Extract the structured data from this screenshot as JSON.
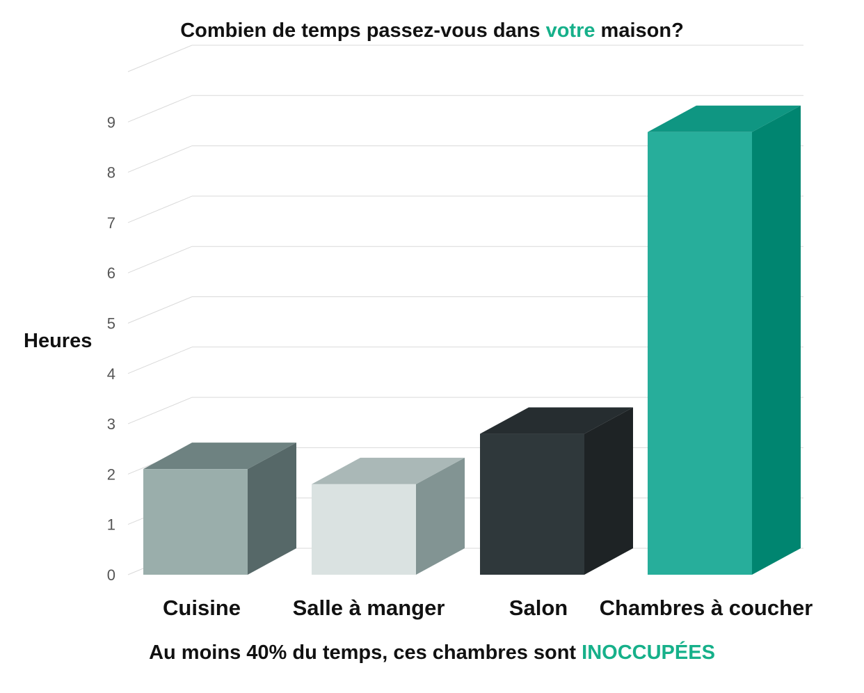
{
  "title": {
    "before": "Combien de temps passez-vous dans ",
    "highlight": "votre",
    "after": " maison?"
  },
  "footer": {
    "before": "Au moins 40% du temps, ces chambres sont ",
    "highlight": "INOCCUPÉES"
  },
  "colors": {
    "accent": "#16b08a",
    "grid": "#d9d9d9"
  },
  "chart_data": {
    "type": "bar",
    "title": "Combien de temps passez-vous dans votre maison?",
    "subtitle": "Au moins 40% du temps, ces chambres sont INOCCUPÉES",
    "xlabel": "",
    "ylabel": "Heures",
    "ylim": [
      0,
      9
    ],
    "yticks": [
      "0",
      "1",
      "2",
      "3",
      "4",
      "5",
      "6",
      "7",
      "8",
      "9"
    ],
    "grid": true,
    "style": "3d",
    "categories": [
      "Cuisine",
      "Salle à manger",
      "Salon",
      "Chambres à coucher"
    ],
    "values": [
      2.1,
      1.8,
      2.8,
      8.8
    ],
    "bar_colors": [
      {
        "front": "#9aaeab",
        "side": "#566868",
        "top": "#6e8281"
      },
      {
        "front": "#dae2e1",
        "side": "#829493",
        "top": "#aab8b7"
      },
      {
        "front": "#2f383b",
        "side": "#1e2325",
        "top": "#262d30"
      },
      {
        "front": "#27ae9b",
        "side": "#008570",
        "top": "#0f9682"
      }
    ]
  }
}
